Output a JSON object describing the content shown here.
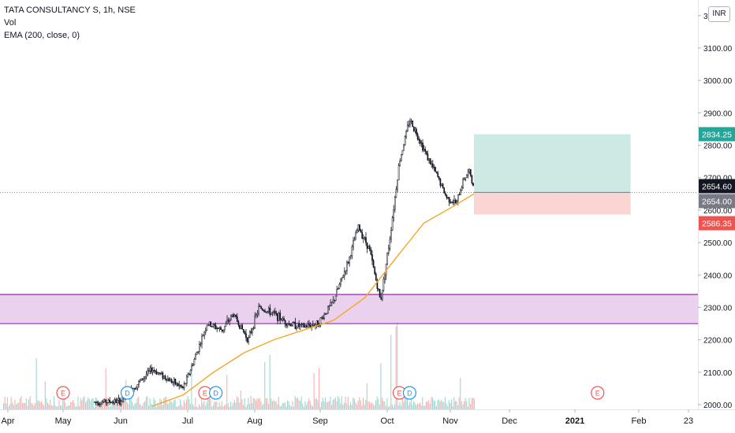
{
  "legend": {
    "symbol": "TATA CONSULTANCY S, 1h, NSE",
    "volume": "Vol",
    "ema": "EMA (200, close, 0)"
  },
  "currency_button": "INR",
  "colors": {
    "up": "#26a69a",
    "down": "#131722",
    "ema": "#f5a623",
    "zone_fill": "#e1bee7",
    "zone_border": "#9c27b0",
    "target_fill": "#cde9e4",
    "stop_fill": "#fbd4d4",
    "target_label": "#26a69a",
    "stop_label": "#ef5350",
    "last_price_label": "#131722",
    "close_label": "#787b86",
    "event_e": "#ef5350",
    "event_d": "#2196f3"
  },
  "chart_data": {
    "type": "candlestick",
    "x_axis_labels": [
      "Apr",
      "May",
      "Jun",
      "Jul",
      "Aug",
      "Sep",
      "Oct",
      "Nov",
      "Dec",
      "2021",
      "Feb",
      "23"
    ],
    "y_axis_labels": [
      "2000.00",
      "2100.00",
      "2200.00",
      "2300.00",
      "2400.00",
      "2500.00",
      "2600.00",
      "2700.00",
      "2800.00",
      "2900.00",
      "3000.00",
      "3100.00",
      "3"
    ],
    "ylim": [
      1990,
      3220
    ],
    "price_path": [
      {
        "t": "Jun 1",
        "v": 2010
      },
      {
        "t": "Jun 8",
        "v": 2060
      },
      {
        "t": "Jun 15",
        "v": 2110
      },
      {
        "t": "Jun 22",
        "v": 2080
      },
      {
        "t": "Jun 29",
        "v": 2050
      },
      {
        "t": "Jul 3",
        "v": 2120
      },
      {
        "t": "Jul 10",
        "v": 2250
      },
      {
        "t": "Jul 17",
        "v": 2230
      },
      {
        "t": "Jul 22",
        "v": 2280
      },
      {
        "t": "Jul 29",
        "v": 2200
      },
      {
        "t": "Aug 3",
        "v": 2300
      },
      {
        "t": "Aug 10",
        "v": 2280
      },
      {
        "t": "Aug 17",
        "v": 2250
      },
      {
        "t": "Aug 24",
        "v": 2240
      },
      {
        "t": "Aug 31",
        "v": 2250
      },
      {
        "t": "Sep 7",
        "v": 2320
      },
      {
        "t": "Sep 14",
        "v": 2450
      },
      {
        "t": "Sep 18",
        "v": 2550
      },
      {
        "t": "Sep 23",
        "v": 2480
      },
      {
        "t": "Sep 28",
        "v": 2320
      },
      {
        "t": "Oct 2",
        "v": 2500
      },
      {
        "t": "Oct 7",
        "v": 2750
      },
      {
        "t": "Oct 12",
        "v": 2880
      },
      {
        "t": "Oct 16",
        "v": 2830
      },
      {
        "t": "Oct 21",
        "v": 2760
      },
      {
        "t": "Oct 26",
        "v": 2700
      },
      {
        "t": "Oct 30",
        "v": 2640
      },
      {
        "t": "Nov 4",
        "v": 2620
      },
      {
        "t": "Nov 8",
        "v": 2700
      },
      {
        "t": "Nov 11",
        "v": 2720
      },
      {
        "t": "Nov 13",
        "v": 2654
      }
    ],
    "ema_200": [
      {
        "t": "Jun 15",
        "v": 1995
      },
      {
        "t": "Jun 29",
        "v": 2030
      },
      {
        "t": "Jul 13",
        "v": 2100
      },
      {
        "t": "Jul 27",
        "v": 2160
      },
      {
        "t": "Aug 10",
        "v": 2200
      },
      {
        "t": "Aug 24",
        "v": 2230
      },
      {
        "t": "Sep 7",
        "v": 2260
      },
      {
        "t": "Sep 21",
        "v": 2330
      },
      {
        "t": "Oct 5",
        "v": 2450
      },
      {
        "t": "Oct 19",
        "v": 2560
      },
      {
        "t": "Nov 2",
        "v": 2610
      },
      {
        "t": "Nov 13",
        "v": 2650
      }
    ],
    "support_zone": {
      "low": 2250,
      "high": 2340
    },
    "position": {
      "entry": 2654.6,
      "target": 2834.25,
      "stop": 2586.35,
      "start": "Nov 13",
      "end": "Jan 28"
    },
    "price_labels": {
      "target": "2834.25",
      "last": "2654.60",
      "close": "2654.00",
      "stop": "2586.35"
    },
    "events": [
      {
        "type": "E",
        "t": "May 1"
      },
      {
        "type": "D",
        "t": "Jun 4"
      },
      {
        "type": "E",
        "t": "Jul 9"
      },
      {
        "type": "D",
        "t": "Jul 14"
      },
      {
        "type": "E",
        "t": "Oct 7"
      },
      {
        "type": "D",
        "t": "Oct 12"
      },
      {
        "type": "E",
        "t": "Jan 12"
      }
    ]
  }
}
